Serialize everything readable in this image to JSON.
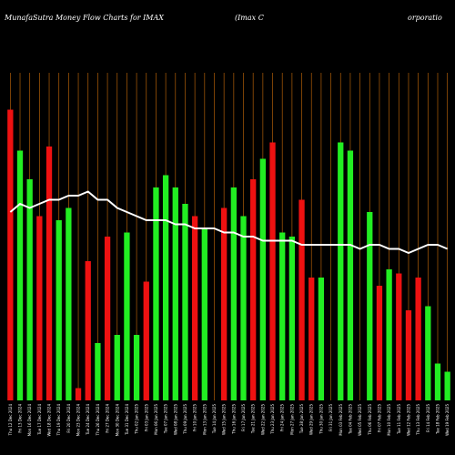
{
  "chart_data": {
    "type": "bar",
    "title": "MunafaSutra  Money Flow  Charts for IMAX",
    "title_right_a": "(Imax C",
    "title_right_b": "orporatio",
    "categories": [
      "Wed 19 Feb 2025",
      "Tue 18 Feb 2025",
      "Fri 14 Feb 2025",
      "Thu 13 Feb 2025",
      "Wed 12 Feb 2025",
      "Tue 11 Feb 2025",
      "Mon 10 Feb 2025",
      "Fri 07 Feb 2025",
      "Thu 06 Feb 2025",
      "Wed 05 Feb 2025",
      "Tue 04 Feb 2025",
      "Mon 03 Feb 2025",
      "Fri 31 Jan 2025",
      "Thu 30 Jan 2025",
      "Wed 29 Jan 2025",
      "Tue 28 Jan 2025",
      "Mon 27 Jan 2025",
      "Fri 24 Jan 2025",
      "Thu 23 Jan 2025",
      "Wed 22 Jan 2025",
      "Tue 21 Jan 2025",
      "Fri 17 Jan 2025",
      "Thu 16 Jan 2025",
      "Wed 15 Jan 2025",
      "Tue 14 Jan 2025",
      "Mon 13 Jan 2025",
      "Fri 10 Jan 2025",
      "Thu 09 Jan 2025",
      "Wed 08 Jan 2025",
      "Tue 07 Jan 2025",
      "Mon 06 Jan 2025",
      "Fri 03 Jan 2025",
      "Thu 02 Jan 2025",
      "Tue 31 Dec 2024",
      "Mon 30 Dec 2024",
      "Fri 27 Dec 2024",
      "Thu 26 Dec 2024",
      "Tue 24 Dec 2024",
      "Mon 23 Dec 2024",
      "Fri 20 Dec 2024",
      "Thu 19 Dec 2024",
      "Wed 18 Dec 2024",
      "Tue 17 Dec 2024",
      "Mon 16 Dec 2024",
      "Fri 13 Dec 2024",
      "Thu 12 Dec 2024"
    ],
    "bar_values": [
      7,
      9,
      23,
      30,
      22,
      31,
      32,
      28,
      46,
      0,
      61,
      63,
      0,
      30,
      30,
      49,
      40,
      41,
      63,
      59,
      54,
      45,
      52,
      47,
      0,
      42,
      45,
      48,
      52,
      55,
      52,
      29,
      16,
      41,
      16,
      40,
      14,
      34,
      3,
      47,
      44,
      62,
      45,
      54,
      61,
      71
    ],
    "bar_colors": [
      "green",
      "green",
      "green",
      "red",
      "red",
      "red",
      "green",
      "red",
      "green",
      "red",
      "green",
      "green",
      "red",
      "green",
      "red",
      "red",
      "green",
      "green",
      "red",
      "green",
      "red",
      "green",
      "green",
      "red",
      "red",
      "green",
      "red",
      "green",
      "green",
      "green",
      "green",
      "red",
      "green",
      "green",
      "green",
      "red",
      "green",
      "red",
      "red",
      "green",
      "green",
      "red",
      "red",
      "green",
      "green",
      "red"
    ],
    "line_values": [
      37,
      38,
      38,
      37,
      36,
      37,
      37,
      38,
      38,
      37,
      38,
      38,
      38,
      38,
      38,
      38,
      39,
      39,
      39,
      39,
      40,
      40,
      41,
      41,
      42,
      42,
      42,
      43,
      43,
      44,
      44,
      44,
      45,
      46,
      47,
      49,
      49,
      51,
      50,
      50,
      49,
      49,
      48,
      47,
      48,
      46
    ],
    "ylim": [
      0,
      80
    ],
    "grid": true,
    "colors": {
      "background": "#000000",
      "grid": "#b05e08",
      "up": "#22ee22",
      "down": "#ee1111",
      "line": "#ffffff"
    }
  }
}
